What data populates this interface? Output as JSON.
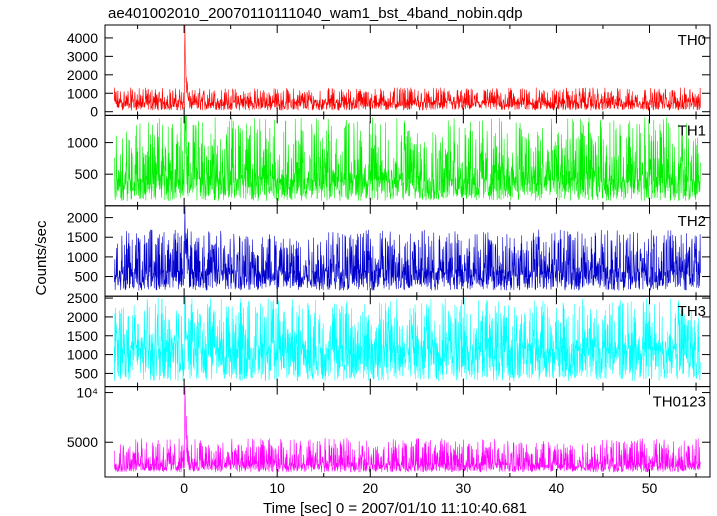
{
  "title": "ae401002010_20070110111040_wam1_bst_4band_nobin.qdp",
  "ylabel": "Counts/sec",
  "xlabel": "Time [sec] 0 = 2007/01/10 11:10:40.681",
  "chart_data": {
    "type": "line",
    "title": "ae401002010_20070110111040_wam1_bst_4band_nobin.qdp",
    "xlabel": "Time [sec] 0 = 2007/01/10 11:10:40.681",
    "ylabel": "Counts/sec",
    "xlim": [
      -8.5,
      56.5
    ],
    "x_ticks": [
      0,
      10,
      20,
      30,
      40,
      50
    ],
    "x_range": [
      -7.5,
      55.5
    ],
    "burst_time": 0.1,
    "grid": false,
    "legend": "none",
    "panels": [
      {
        "name": "TH0",
        "color": "#ff0000",
        "ylim": [
          -200,
          4700
        ],
        "y_ticks": [
          {
            "value": 0,
            "label": "0"
          },
          {
            "value": 1000,
            "label": "1000"
          },
          {
            "value": 2000,
            "label": "2000"
          },
          {
            "value": 3000,
            "label": "3000"
          },
          {
            "value": 4000,
            "label": "4000"
          }
        ],
        "baseline_mean": 500,
        "baseline_low": 80,
        "baseline_high": 1300,
        "burst_peak": 4700
      },
      {
        "name": "TH1",
        "color": "#00ee00",
        "ylim": [
          0,
          1430
        ],
        "y_ticks": [
          {
            "value": 500,
            "label": "500"
          },
          {
            "value": 1000,
            "label": "1000"
          }
        ],
        "baseline_mean": 420,
        "baseline_low": 80,
        "baseline_high": 1400,
        "burst_peak": 1430
      },
      {
        "name": "TH2",
        "color": "#0000cc",
        "ylim": [
          0,
          2300
        ],
        "y_ticks": [
          {
            "value": 500,
            "label": "500"
          },
          {
            "value": 1000,
            "label": "1000"
          },
          {
            "value": 1500,
            "label": "1500"
          },
          {
            "value": 2000,
            "label": "2000"
          }
        ],
        "baseline_mean": 620,
        "baseline_low": 150,
        "baseline_high": 1700,
        "burst_peak": 2300
      },
      {
        "name": "TH3",
        "color": "#00ffff",
        "ylim": [
          150,
          2550
        ],
        "y_ticks": [
          {
            "value": 500,
            "label": "500"
          },
          {
            "value": 1000,
            "label": "1000"
          },
          {
            "value": 1500,
            "label": "1500"
          },
          {
            "value": 2000,
            "label": "2000"
          },
          {
            "value": 2500,
            "label": "2500"
          }
        ],
        "baseline_mean": 1150,
        "baseline_low": 300,
        "baseline_high": 2500,
        "burst_peak": 2550
      },
      {
        "name": "TH0123",
        "color": "#ff00ff",
        "ylim": [
          1500,
          10600
        ],
        "y_ticks": [
          {
            "value": 5000,
            "label": "5000"
          },
          {
            "value": 10000,
            "label": "10⁴"
          }
        ],
        "baseline_mean": 2800,
        "baseline_low": 2000,
        "baseline_high": 5400,
        "burst_peak": 10600
      }
    ]
  }
}
